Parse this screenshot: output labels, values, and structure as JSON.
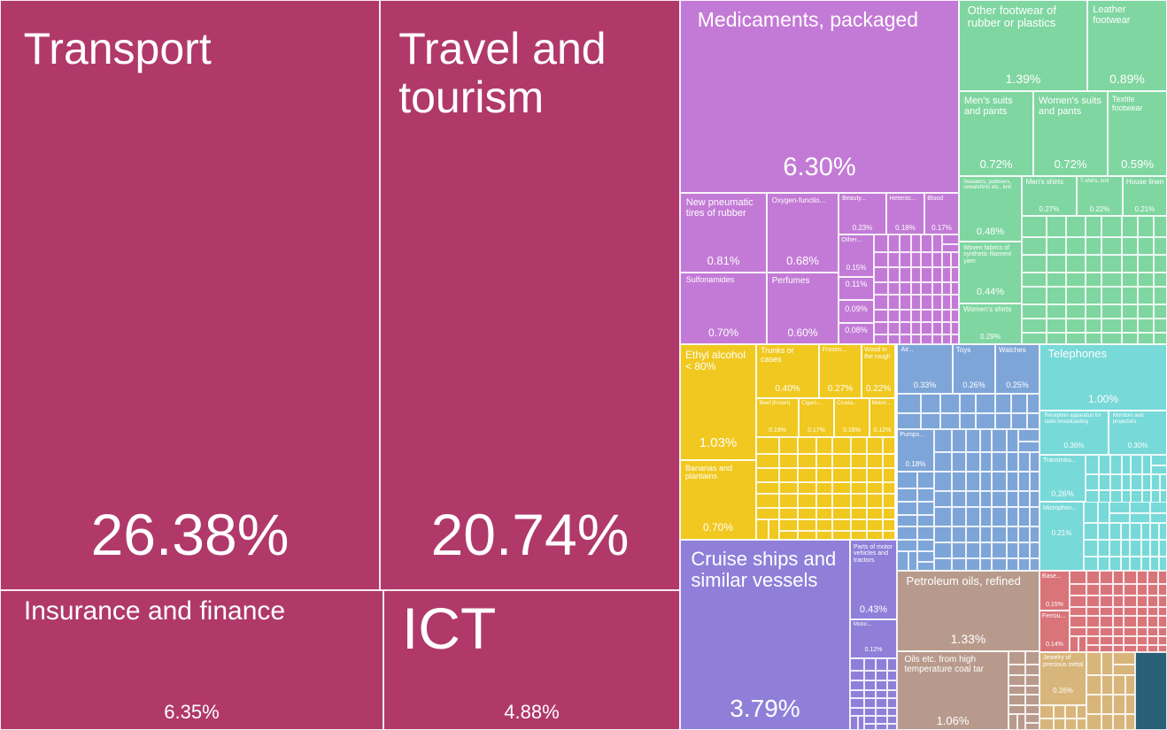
{
  "chart_data": {
    "type": "treemap",
    "colors": {
      "services": "#b0396a",
      "chemicals": "#c37ad6",
      "textiles": "#7fd6a0",
      "foodstuffs": "#f0c81f",
      "transportation": "#8f7fd9",
      "machines": "#7ea5d8",
      "electronics": "#77d9d8",
      "minerals": "#b89a8c",
      "metals": "#d9757a",
      "precious_metals": "#d8b57a",
      "dark": "#2a5f78"
    },
    "items": [
      {
        "label": "Transport",
        "value": "26.38%",
        "group": "services"
      },
      {
        "label": "Travel and tourism",
        "value": "20.74%",
        "group": "services"
      },
      {
        "label": "Insurance and finance",
        "value": "6.35%",
        "group": "services"
      },
      {
        "label": "ICT",
        "value": "4.88%",
        "group": "services"
      },
      {
        "label": "Medicaments, packaged",
        "value": "6.30%",
        "group": "chemicals"
      },
      {
        "label": "New pneumatic tires of rubber",
        "value": "0.81%",
        "group": "chemicals"
      },
      {
        "label": "Oxygen-functio...",
        "value": "0.68%",
        "group": "chemicals"
      },
      {
        "label": "Beauty...",
        "value": "0.23%",
        "group": "chemicals"
      },
      {
        "label": "Heteroc...",
        "value": "0.18%",
        "group": "chemicals"
      },
      {
        "label": "Blood",
        "value": "0.17%",
        "group": "chemicals"
      },
      {
        "label": "Other...",
        "value": "0.15%",
        "group": "chemicals"
      },
      {
        "label": "",
        "value": "0.11%",
        "group": "chemicals"
      },
      {
        "label": "",
        "value": "0.09%",
        "group": "chemicals"
      },
      {
        "label": "",
        "value": "0.08%",
        "group": "chemicals"
      },
      {
        "label": "Sulfonamides",
        "value": "0.70%",
        "group": "chemicals"
      },
      {
        "label": "Perfumes",
        "value": "0.60%",
        "group": "chemicals"
      },
      {
        "label": "Other footwear of rubber or plastics",
        "value": "1.39%",
        "group": "textiles"
      },
      {
        "label": "Leather footwear",
        "value": "0.89%",
        "group": "textiles"
      },
      {
        "label": "Men's suits and pants",
        "value": "0.72%",
        "group": "textiles"
      },
      {
        "label": "Women's suits and pants",
        "value": "0.72%",
        "group": "textiles"
      },
      {
        "label": "Textile footwear",
        "value": "0.59%",
        "group": "textiles"
      },
      {
        "label": "Sweaters, pullovers, sweatshirts etc., knit",
        "value": "0.48%",
        "group": "textiles"
      },
      {
        "label": "Men's shirts",
        "value": "0.27%",
        "group": "textiles"
      },
      {
        "label": "T-shirts, knit",
        "value": "0.22%",
        "group": "textiles"
      },
      {
        "label": "House linen",
        "value": "0.21%",
        "group": "textiles"
      },
      {
        "label": "Woven fabrics of synthetic filament yarn",
        "value": "0.44%",
        "group": "textiles"
      },
      {
        "label": "Women's shirts",
        "value": "0.29%",
        "group": "textiles"
      },
      {
        "label": "Ethyl alcohol < 80%",
        "value": "1.03%",
        "group": "foodstuffs"
      },
      {
        "label": "Trunks or cases",
        "value": "0.40%",
        "group": "foodstuffs"
      },
      {
        "label": "Frozen...",
        "value": "0.27%",
        "group": "foodstuffs"
      },
      {
        "label": "Wood in the rough",
        "value": "0.22%",
        "group": "foodstuffs"
      },
      {
        "label": "Beef (frozen)",
        "value": "0.19%",
        "group": "foodstuffs"
      },
      {
        "label": "Cigars...",
        "value": "0.17%",
        "group": "foodstuffs"
      },
      {
        "label": "Crusta...",
        "value": "0.16%",
        "group": "foodstuffs"
      },
      {
        "label": "Melon...",
        "value": "0.12%",
        "group": "foodstuffs"
      },
      {
        "label": "Bananas and plantains",
        "value": "0.70%",
        "group": "foodstuffs"
      },
      {
        "label": "Cruise ships and similar vessels",
        "value": "3.79%",
        "group": "transportation"
      },
      {
        "label": "Parts of motor vehicles and tractors",
        "value": "0.43%",
        "group": "transportation"
      },
      {
        "label": "Motor...",
        "value": "0.12%",
        "group": "transportation"
      },
      {
        "label": "Air...",
        "value": "0.33%",
        "group": "machines"
      },
      {
        "label": "Toys",
        "value": "0.26%",
        "group": "machines"
      },
      {
        "label": "Watches",
        "value": "0.25%",
        "group": "machines"
      },
      {
        "label": "Pumps...",
        "value": "0.18%",
        "group": "machines"
      },
      {
        "label": "Telephones",
        "value": "1.00%",
        "group": "electronics"
      },
      {
        "label": "Reception apparatus for radio broadcasting",
        "value": "0.36%",
        "group": "electronics"
      },
      {
        "label": "Monitors and projectors",
        "value": "0.30%",
        "group": "electronics"
      },
      {
        "label": "Transmiss...",
        "value": "0.26%",
        "group": "electronics"
      },
      {
        "label": "Microphon...",
        "value": "0.21%",
        "group": "electronics"
      },
      {
        "label": "Petroleum oils, refined",
        "value": "1.33%",
        "group": "minerals"
      },
      {
        "label": "Oils etc. from high temperature coal tar",
        "value": "1.06%",
        "group": "minerals"
      },
      {
        "label": "Base...",
        "value": "0.15%",
        "group": "metals"
      },
      {
        "label": "Ferrou...",
        "value": "0.14%",
        "group": "metals"
      },
      {
        "label": "Jewelry of precious metal",
        "value": "0.26%",
        "group": "precious_metals"
      }
    ]
  }
}
